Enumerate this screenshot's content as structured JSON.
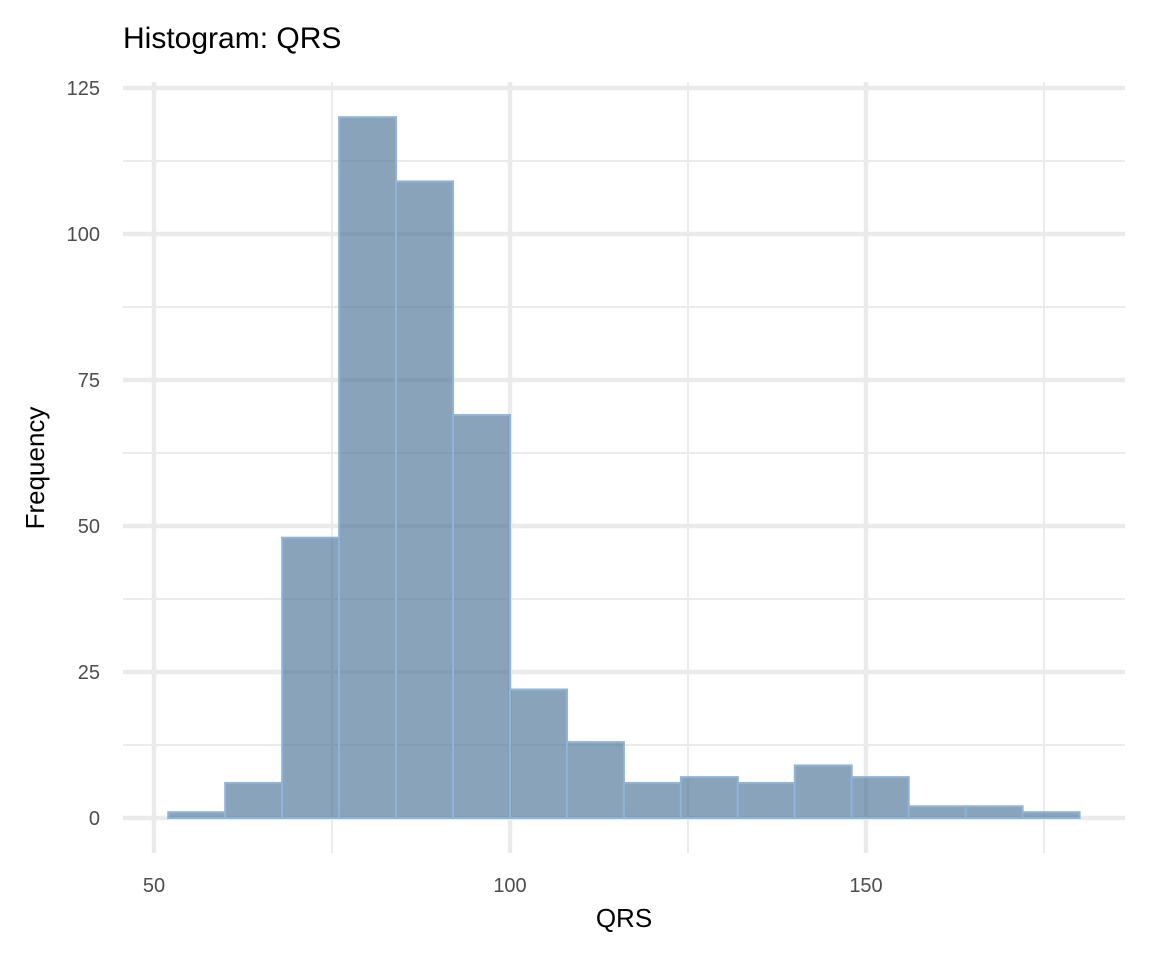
{
  "chart_data": {
    "type": "bar",
    "title": "Histogram: QRS",
    "xlabel": "QRS",
    "ylabel": "Frequency",
    "xlim": [
      50,
      182
    ],
    "ylim": [
      0,
      125
    ],
    "x_ticks": [
      50,
      100,
      150
    ],
    "y_ticks": [
      0,
      25,
      50,
      75,
      100,
      125
    ],
    "grid": true,
    "bins": [
      {
        "start": 52.0,
        "end": 60.0,
        "count": 1
      },
      {
        "start": 60.0,
        "end": 68.0,
        "count": 6
      },
      {
        "start": 68.0,
        "end": 76.0,
        "count": 48
      },
      {
        "start": 76.0,
        "end": 84.0,
        "count": 120
      },
      {
        "start": 84.0,
        "end": 92.0,
        "count": 109
      },
      {
        "start": 92.0,
        "end": 100.0,
        "count": 69
      },
      {
        "start": 100.0,
        "end": 108.0,
        "count": 22
      },
      {
        "start": 108.0,
        "end": 116.0,
        "count": 13
      },
      {
        "start": 116.0,
        "end": 124.0,
        "count": 6
      },
      {
        "start": 124.0,
        "end": 132.0,
        "count": 7
      },
      {
        "start": 132.0,
        "end": 140.0,
        "count": 6
      },
      {
        "start": 140.0,
        "end": 148.0,
        "count": 9
      },
      {
        "start": 148.0,
        "end": 156.0,
        "count": 7
      },
      {
        "start": 156.0,
        "end": 164.0,
        "count": 2
      },
      {
        "start": 164.0,
        "end": 172.0,
        "count": 2
      },
      {
        "start": 172.0,
        "end": 180.0,
        "count": 1
      }
    ],
    "colors": {
      "bar_fill": "#4a7196",
      "bar_outline": "#8fb4da",
      "grid": "#ebebeb"
    }
  }
}
